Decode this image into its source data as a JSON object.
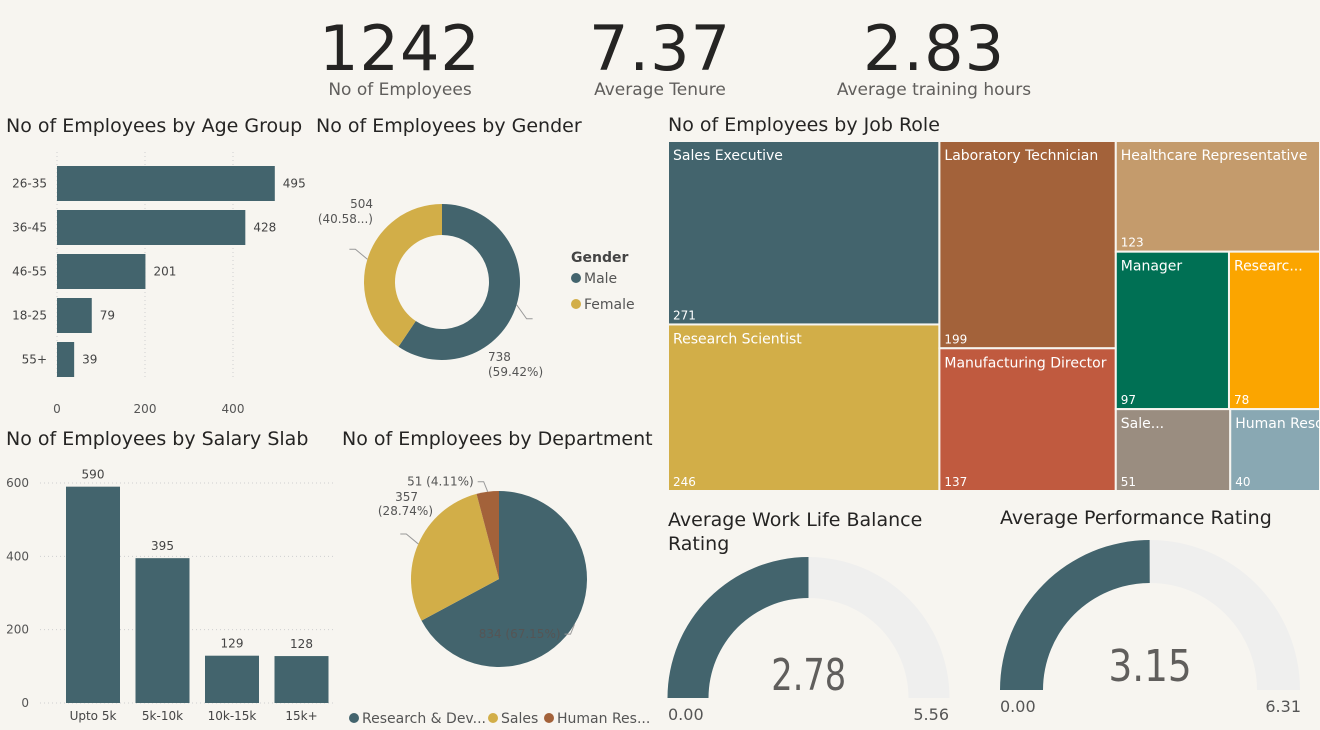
{
  "kpis": [
    {
      "value": "1242",
      "label": "No of Employees"
    },
    {
      "value": "7.37",
      "label": "Average Tenure"
    },
    {
      "value": "2.83",
      "label": "Average training hours"
    }
  ],
  "colors": {
    "teal": "#43646d",
    "gold": "#d2ae48",
    "brown": "#a3623a",
    "bg": "#f7f5f0",
    "gaugeTrack": "#efefee"
  },
  "chart_data": [
    {
      "id": "age",
      "type": "bar",
      "orientation": "horizontal",
      "title": "No of Employees by Age Group",
      "categories": [
        "26-35",
        "36-45",
        "46-55",
        "18-25",
        "55+"
      ],
      "values": [
        495,
        428,
        201,
        79,
        39
      ],
      "xticks": [
        0,
        200,
        400
      ],
      "xlim": [
        0,
        500
      ]
    },
    {
      "id": "gender",
      "type": "pie",
      "variant": "donut",
      "title": "No of Employees by Gender",
      "legend_title": "Gender",
      "slices": [
        {
          "name": "Male",
          "value": 738,
          "label": "738",
          "pct_label": "(59.42%)",
          "color": "#43646d"
        },
        {
          "name": "Female",
          "value": 504,
          "label": "504",
          "pct_label": "(40.58...)",
          "color": "#d2ae48"
        }
      ]
    },
    {
      "id": "salary",
      "type": "bar",
      "orientation": "vertical",
      "title": "No of Employees by Salary Slab",
      "categories": [
        "Upto 5k",
        "5k-10k",
        "10k-15k",
        "15k+"
      ],
      "values": [
        590,
        395,
        129,
        128
      ],
      "yticks": [
        0,
        200,
        400,
        600
      ],
      "ylim": [
        0,
        600
      ]
    },
    {
      "id": "department",
      "type": "pie",
      "title": "No of Employees by Department",
      "slices": [
        {
          "name": "Research & Dev...",
          "value": 834,
          "label": "834 (67.15%)",
          "color": "#43646d"
        },
        {
          "name": "Sales",
          "value": 357,
          "label": "357",
          "label2": "(28.74%)",
          "color": "#d2ae48"
        },
        {
          "name": "Human Res...",
          "value": 51,
          "label": "51 (4.11%)",
          "color": "#a3623a"
        }
      ]
    },
    {
      "id": "jobrole",
      "type": "treemap",
      "title": "No of Employees by Job Role",
      "items": [
        {
          "name": "Sales Executive",
          "value": 271,
          "color": "#43646d"
        },
        {
          "name": "Research Scientist",
          "value": 246,
          "color": "#d2ae48"
        },
        {
          "name": "Laboratory Technician",
          "value": 199,
          "color": "#a3623a"
        },
        {
          "name": "Manufacturing Director",
          "value": 137,
          "color": "#c05a3f"
        },
        {
          "name": "Healthcare Representative",
          "value": 123,
          "color": "#c49b6c"
        },
        {
          "name": "Manager",
          "value": 97,
          "color": "#007054"
        },
        {
          "name": "Researc...",
          "value": 78,
          "color": "#fba500"
        },
        {
          "name": "Sale...",
          "value": 51,
          "color": "#9a8d80"
        },
        {
          "name": "Human Resources",
          "value": 40,
          "color": "#89a8b3"
        }
      ]
    },
    {
      "id": "wlb",
      "type": "gauge",
      "title": "Average Work Life Balance Rating",
      "value": 2.78,
      "value_label": "2.78",
      "min": 0,
      "max": 5.56,
      "min_label": "0.00",
      "max_label": "5.56"
    },
    {
      "id": "perf",
      "type": "gauge",
      "title": "Average Performance Rating",
      "value": 3.15,
      "value_label": "3.15",
      "min": 0,
      "max": 6.31,
      "min_label": "0.00",
      "max_label": "6.31"
    }
  ]
}
